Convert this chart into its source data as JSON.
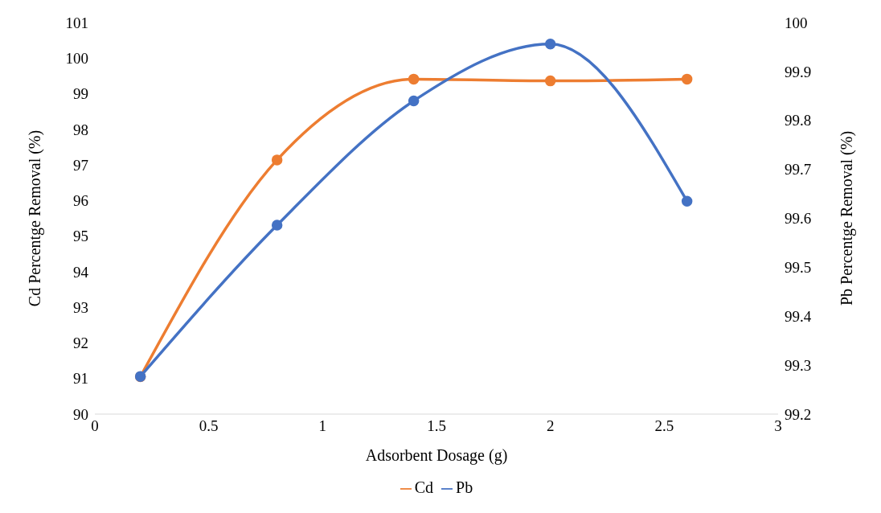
{
  "chart_data": {
    "type": "line",
    "xlabel": "Adsorbent Dosage (g)",
    "ylabel": "Cd Percentge Removal (%)",
    "y2label": "Pb Percentge Removal (%)",
    "x": [
      0.2,
      0.8,
      1.4,
      2,
      2.6
    ],
    "series": [
      {
        "name": "Cd",
        "color": "#ed7d31",
        "values": [
          91.05,
          97.14,
          99.41,
          99.36,
          99.41
        ]
      },
      {
        "name": "Pb",
        "color": "#4472c4",
        "axis": "y2",
        "values": [
          99.277,
          99.586,
          99.84,
          99.956,
          99.635
        ]
      }
    ],
    "xlim": [
      0,
      3
    ],
    "xticks": [
      0,
      0.5,
      1,
      1.5,
      2,
      2.5,
      3
    ],
    "ylim": [
      90,
      101
    ],
    "yticks": [
      90,
      91,
      92,
      93,
      94,
      95,
      96,
      97,
      98,
      99,
      100,
      101
    ],
    "y2lim": [
      99.2,
      100
    ],
    "y2ticks": [
      99.2,
      99.3,
      99.4,
      99.5,
      99.6,
      99.7,
      99.8,
      99.9,
      100
    ],
    "grid": false,
    "legend": "bottom",
    "marker": "circle",
    "line_style": "solid"
  }
}
